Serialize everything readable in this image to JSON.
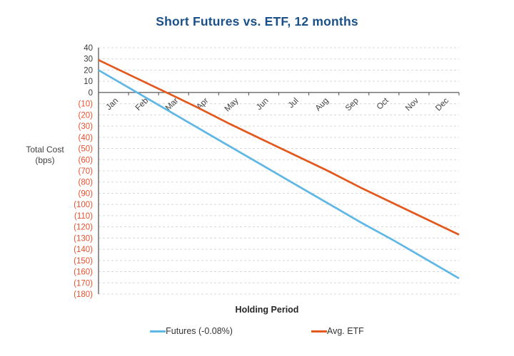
{
  "title": {
    "text": "Short Futures vs. ETF, 12 months",
    "color": "#1A5089"
  },
  "axes": {
    "y_title_line1": "Total Cost",
    "y_title_line2": "(bps)",
    "x_title": "Holding Period"
  },
  "legend": {
    "items": [
      {
        "label": "Futures (-0.08%)",
        "color": "#5FB7E5"
      },
      {
        "label": "Avg. ETF",
        "color": "#E2581D"
      }
    ]
  },
  "chart_data": {
    "type": "line",
    "title": "Short Futures vs. ETF, 12 months",
    "xlabel": "Holding Period",
    "ylabel": "Total Cost (bps)",
    "categories": [
      "Jan",
      "Feb",
      "Mar",
      "Apr",
      "May",
      "Jun",
      "Jul",
      "Aug",
      "Sep",
      "Oct",
      "Nov",
      "Dec"
    ],
    "series": [
      {
        "name": "Futures (-0.08%)",
        "id": "futures",
        "color": "#5FB7E5",
        "values": [
          20,
          3,
          -14,
          -31,
          -48,
          -65,
          -82,
          -99,
          -116,
          -132,
          -149,
          -166
        ]
      },
      {
        "name": "Avg. ETF",
        "id": "avg-etf",
        "color": "#E2581D",
        "values": [
          29,
          15,
          1,
          -13,
          -28,
          -42,
          -56,
          -70,
          -85,
          -99,
          -113,
          -127
        ]
      }
    ],
    "ylim": [
      -180,
      40
    ],
    "ytick_step": 10,
    "ytick_labels": [
      "40",
      "30",
      "20",
      "10",
      "0",
      "(10)",
      "(20)",
      "(30)",
      "(40)",
      "(50)",
      "(60)",
      "(70)",
      "(80)",
      "(90)",
      "(100)",
      "(110)",
      "(120)",
      "(130)",
      "(140)",
      "(150)",
      "(160)",
      "(170)",
      "(180)"
    ],
    "positive_tick_color": "#3A3A3A",
    "negative_tick_color": "#E6502E",
    "month_label_color": "#3F3F3F",
    "gridline_color": "#D8D8D8",
    "axis_color": "#595959",
    "grid": "horizontal-dashed",
    "legend_position": "bottom"
  }
}
